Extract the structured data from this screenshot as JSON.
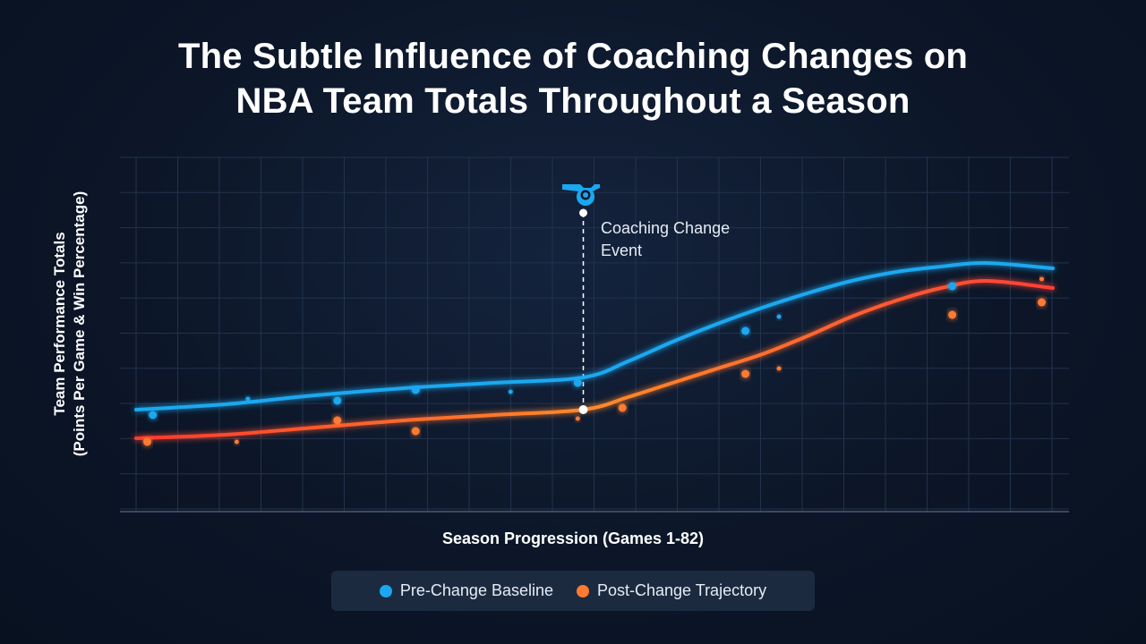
{
  "chart_data": {
    "type": "line",
    "title": [
      "The Subtle Influence of Coaching Changes on",
      "NBA Team Totals Throughout a Season"
    ],
    "xlabel": "Season Progression (Games 1-82)",
    "ylabel": [
      "Team Performance Totals",
      "(Points Per Game & Win Percentage)"
    ],
    "xlim": [
      0,
      82
    ],
    "ylim": [
      0,
      100
    ],
    "grid": true,
    "legend_position": "bottom-center",
    "annotation": {
      "label_lines": [
        "Coaching Change",
        "Event"
      ],
      "x": 40,
      "icon": "whistle-icon"
    },
    "series": [
      {
        "name": "Pre-Change Baseline",
        "color": "#1aa8f0",
        "line": [
          {
            "x": 0,
            "y": 28.5
          },
          {
            "x": 8,
            "y": 30
          },
          {
            "x": 16,
            "y": 32.5
          },
          {
            "x": 24,
            "y": 34.5
          },
          {
            "x": 32,
            "y": 36
          },
          {
            "x": 40,
            "y": 37.5
          },
          {
            "x": 44,
            "y": 42
          },
          {
            "x": 48,
            "y": 47.5
          },
          {
            "x": 52,
            "y": 52.5
          },
          {
            "x": 56,
            "y": 57
          },
          {
            "x": 60,
            "y": 61
          },
          {
            "x": 64,
            "y": 64.5
          },
          {
            "x": 68,
            "y": 67
          },
          {
            "x": 72,
            "y": 68.5
          },
          {
            "x": 76,
            "y": 69.5
          },
          {
            "x": 82,
            "y": 68
          }
        ],
        "points": [
          {
            "x": 1.5,
            "y": 27
          },
          {
            "x": 10,
            "y": 31.5
          },
          {
            "x": 18,
            "y": 31
          },
          {
            "x": 25,
            "y": 34
          },
          {
            "x": 33.5,
            "y": 33.5
          },
          {
            "x": 39.5,
            "y": 36
          },
          {
            "x": 54.5,
            "y": 50.5
          },
          {
            "x": 57.5,
            "y": 54.5
          },
          {
            "x": 73,
            "y": 63
          }
        ]
      },
      {
        "name": "Post-Change Trajectory",
        "color": "#ff7a30",
        "line": [
          {
            "x": 0,
            "y": 20.5
          },
          {
            "x": 8,
            "y": 21.5
          },
          {
            "x": 16,
            "y": 23.5
          },
          {
            "x": 24,
            "y": 25.5
          },
          {
            "x": 32,
            "y": 27
          },
          {
            "x": 40,
            "y": 28.5
          },
          {
            "x": 44,
            "y": 32
          },
          {
            "x": 48,
            "y": 36
          },
          {
            "x": 52,
            "y": 40
          },
          {
            "x": 56,
            "y": 44
          },
          {
            "x": 60,
            "y": 49
          },
          {
            "x": 64,
            "y": 54.5
          },
          {
            "x": 68,
            "y": 59
          },
          {
            "x": 72,
            "y": 62.5
          },
          {
            "x": 76,
            "y": 64.5
          },
          {
            "x": 82,
            "y": 62.5
          }
        ],
        "points": [
          {
            "x": 1,
            "y": 19.5
          },
          {
            "x": 9,
            "y": 19.5
          },
          {
            "x": 18,
            "y": 25.5
          },
          {
            "x": 25,
            "y": 22.5
          },
          {
            "x": 39.5,
            "y": 26
          },
          {
            "x": 43.5,
            "y": 29
          },
          {
            "x": 54.5,
            "y": 38.5
          },
          {
            "x": 57.5,
            "y": 40
          },
          {
            "x": 73,
            "y": 55
          },
          {
            "x": 81,
            "y": 58.5
          },
          {
            "x": 81,
            "y": 65
          }
        ]
      }
    ]
  }
}
